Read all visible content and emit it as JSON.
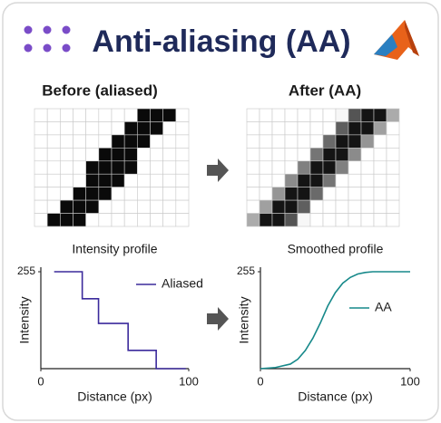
{
  "header": {
    "title": "Anti-aliasing (AA)"
  },
  "panels": [
    {
      "label": "Before (aliased)"
    },
    {
      "label": "After (AA)"
    }
  ],
  "chart_data": [
    {
      "type": "line",
      "title": "Intensity profile",
      "xlabel": "Distance (px)",
      "ylabel": "Intensity",
      "x": [
        9,
        28,
        28,
        39,
        39,
        59,
        59,
        78,
        78,
        98
      ],
      "series": [
        {
          "name": "Aliased",
          "color": "#3b2a9c",
          "values": [
            255,
            255,
            184,
            184,
            119,
            119,
            48,
            48,
            0,
            0
          ]
        }
      ],
      "xlim": [
        0,
        100
      ],
      "xticks": [
        0,
        100
      ],
      "ylim": [
        0,
        255
      ],
      "yticks": [
        255
      ]
    },
    {
      "type": "line",
      "title": "Smoothed profile",
      "xlabel": "Distance (px)",
      "ylabel": "Intensity",
      "x": [
        0,
        10,
        20,
        25,
        30,
        35,
        40,
        45,
        50,
        55,
        60,
        65,
        70,
        75,
        80,
        90,
        100
      ],
      "series": [
        {
          "name": "AA",
          "color": "#17898a",
          "values": [
            0,
            3,
            12,
            25,
            48,
            80,
            120,
            165,
            200,
            225,
            240,
            249,
            253,
            255,
            255,
            255,
            255
          ]
        }
      ],
      "xlim": [
        0,
        100
      ],
      "xticks": [
        0,
        100
      ],
      "ylim": [
        0,
        255
      ],
      "yticks": [
        255
      ]
    }
  ]
}
